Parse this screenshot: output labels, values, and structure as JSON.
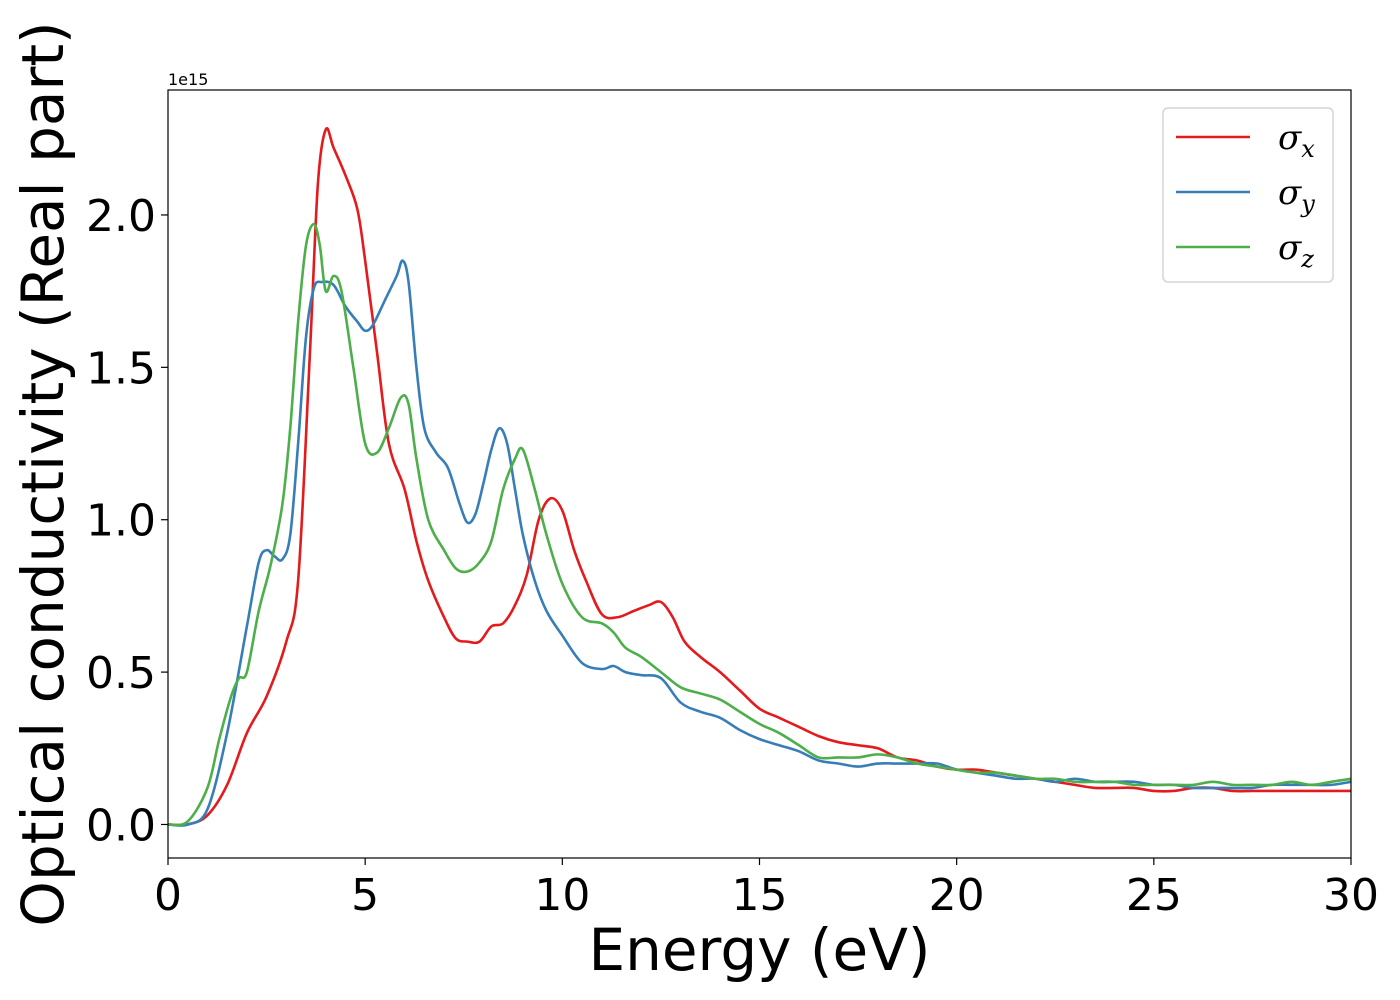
{
  "chart_data": {
    "type": "line",
    "xlabel": "Energy (eV)",
    "ylabel": "Optical conductivity (Real part)",
    "y_offset_label": "1e15",
    "y_scale": 1000000000000000.0,
    "xlim": [
      0,
      30
    ],
    "ylim": [
      -0.11,
      2.41
    ],
    "xticks": [
      0,
      5,
      10,
      15,
      20,
      25,
      30
    ],
    "xtick_labels": [
      "0",
      "5",
      "10",
      "15",
      "20",
      "25",
      "30"
    ],
    "yticks": [
      0.0,
      0.5,
      1.0,
      1.5,
      2.0
    ],
    "ytick_labels": [
      "0.0",
      "0.5",
      "1.0",
      "1.5",
      "2.0"
    ],
    "grid": false,
    "legend_position": "top-right",
    "series": [
      {
        "name": "σx",
        "symbol": "σ",
        "subscript": "x",
        "color": "#e41a1c",
        "x": [
          0,
          0.5,
          1.0,
          1.5,
          2.0,
          2.5,
          3.0,
          3.3,
          3.6,
          3.8,
          4.0,
          4.2,
          4.5,
          4.8,
          5.0,
          5.3,
          5.6,
          6.0,
          6.3,
          6.6,
          7.0,
          7.3,
          7.6,
          7.9,
          8.2,
          8.5,
          8.8,
          9.1,
          9.4,
          9.7,
          10.0,
          10.3,
          10.6,
          11.0,
          11.4,
          11.8,
          12.2,
          12.5,
          12.8,
          13.1,
          13.5,
          14.0,
          14.5,
          15.0,
          15.5,
          16.0,
          16.5,
          17.0,
          17.5,
          18.0,
          18.5,
          19.0,
          19.5,
          20.0,
          20.5,
          21.0,
          21.5,
          22.0,
          22.5,
          23.0,
          23.5,
          24.0,
          24.5,
          25.0,
          25.5,
          26.0,
          26.5,
          27.0,
          27.5,
          28.0,
          28.5,
          29.0,
          29.5,
          30.0
        ],
        "y": [
          0.0,
          0.0,
          0.03,
          0.13,
          0.3,
          0.42,
          0.6,
          0.8,
          1.55,
          2.1,
          2.28,
          2.22,
          2.13,
          2.02,
          1.85,
          1.55,
          1.25,
          1.1,
          0.93,
          0.8,
          0.68,
          0.61,
          0.6,
          0.6,
          0.65,
          0.66,
          0.72,
          0.82,
          1.0,
          1.07,
          1.03,
          0.9,
          0.8,
          0.69,
          0.68,
          0.7,
          0.72,
          0.73,
          0.68,
          0.6,
          0.55,
          0.5,
          0.44,
          0.38,
          0.35,
          0.32,
          0.29,
          0.27,
          0.26,
          0.25,
          0.22,
          0.21,
          0.19,
          0.18,
          0.18,
          0.17,
          0.16,
          0.15,
          0.14,
          0.13,
          0.12,
          0.12,
          0.12,
          0.11,
          0.11,
          0.12,
          0.12,
          0.11,
          0.11,
          0.11,
          0.11,
          0.11,
          0.11,
          0.11
        ]
      },
      {
        "name": "σy",
        "symbol": "σ",
        "subscript": "y",
        "color": "#377eb8",
        "x": [
          0,
          0.5,
          1.0,
          1.5,
          2.0,
          2.3,
          2.5,
          2.7,
          2.9,
          3.1,
          3.3,
          3.5,
          3.7,
          3.9,
          4.2,
          4.5,
          4.8,
          5.0,
          5.2,
          5.5,
          5.8,
          5.95,
          6.1,
          6.3,
          6.5,
          6.8,
          7.1,
          7.4,
          7.6,
          7.8,
          8.0,
          8.2,
          8.4,
          8.6,
          8.8,
          9.0,
          9.3,
          9.6,
          10.0,
          10.5,
          11.0,
          11.3,
          11.6,
          12.0,
          12.5,
          13.0,
          13.5,
          14.0,
          14.5,
          15.0,
          15.5,
          16.0,
          16.5,
          17.0,
          17.5,
          18.0,
          18.5,
          19.0,
          19.5,
          20.0,
          20.5,
          21.0,
          21.5,
          22.0,
          22.5,
          23.0,
          23.5,
          24.0,
          24.5,
          25.0,
          25.5,
          26.0,
          26.5,
          27.0,
          27.5,
          28.0,
          28.5,
          29.0,
          29.5,
          30.0
        ],
        "y": [
          0.0,
          0.0,
          0.05,
          0.3,
          0.65,
          0.86,
          0.9,
          0.88,
          0.87,
          0.95,
          1.25,
          1.6,
          1.76,
          1.78,
          1.77,
          1.7,
          1.65,
          1.62,
          1.64,
          1.72,
          1.8,
          1.85,
          1.78,
          1.5,
          1.3,
          1.22,
          1.17,
          1.05,
          0.99,
          1.02,
          1.12,
          1.23,
          1.3,
          1.25,
          1.1,
          0.95,
          0.8,
          0.7,
          0.62,
          0.53,
          0.51,
          0.52,
          0.5,
          0.49,
          0.48,
          0.4,
          0.37,
          0.35,
          0.31,
          0.28,
          0.26,
          0.24,
          0.21,
          0.2,
          0.19,
          0.2,
          0.2,
          0.2,
          0.2,
          0.18,
          0.17,
          0.16,
          0.15,
          0.15,
          0.14,
          0.15,
          0.14,
          0.14,
          0.14,
          0.13,
          0.13,
          0.12,
          0.12,
          0.12,
          0.12,
          0.13,
          0.13,
          0.13,
          0.13,
          0.14
        ]
      },
      {
        "name": "σz",
        "symbol": "σ",
        "subscript": "z",
        "color": "#4daf4a",
        "x": [
          0,
          0.5,
          1.0,
          1.3,
          1.6,
          1.8,
          2.0,
          2.3,
          2.6,
          2.9,
          3.1,
          3.3,
          3.5,
          3.7,
          3.85,
          4.0,
          4.2,
          4.4,
          4.7,
          5.0,
          5.3,
          5.6,
          5.9,
          6.1,
          6.3,
          6.6,
          7.0,
          7.3,
          7.6,
          7.9,
          8.2,
          8.5,
          8.8,
          9.0,
          9.3,
          9.6,
          10.0,
          10.5,
          11.0,
          11.3,
          11.6,
          12.0,
          12.5,
          13.0,
          13.5,
          14.0,
          14.5,
          15.0,
          15.5,
          16.0,
          16.5,
          17.0,
          17.5,
          18.0,
          18.5,
          19.0,
          19.5,
          20.0,
          20.5,
          21.0,
          21.5,
          22.0,
          22.5,
          23.0,
          23.5,
          24.0,
          24.5,
          25.0,
          25.5,
          26.0,
          26.5,
          27.0,
          27.5,
          28.0,
          28.5,
          29.0,
          29.5,
          30.0
        ],
        "y": [
          0.0,
          0.01,
          0.12,
          0.28,
          0.42,
          0.48,
          0.5,
          0.7,
          0.85,
          1.05,
          1.3,
          1.65,
          1.9,
          1.97,
          1.9,
          1.75,
          1.8,
          1.75,
          1.5,
          1.25,
          1.22,
          1.3,
          1.4,
          1.38,
          1.2,
          1.0,
          0.9,
          0.84,
          0.83,
          0.86,
          0.93,
          1.1,
          1.2,
          1.23,
          1.1,
          0.95,
          0.79,
          0.68,
          0.66,
          0.63,
          0.58,
          0.55,
          0.5,
          0.45,
          0.43,
          0.41,
          0.37,
          0.33,
          0.3,
          0.26,
          0.22,
          0.22,
          0.22,
          0.23,
          0.22,
          0.2,
          0.19,
          0.18,
          0.17,
          0.17,
          0.16,
          0.15,
          0.15,
          0.14,
          0.14,
          0.14,
          0.13,
          0.13,
          0.13,
          0.13,
          0.14,
          0.13,
          0.13,
          0.13,
          0.14,
          0.13,
          0.14,
          0.15
        ]
      }
    ]
  }
}
